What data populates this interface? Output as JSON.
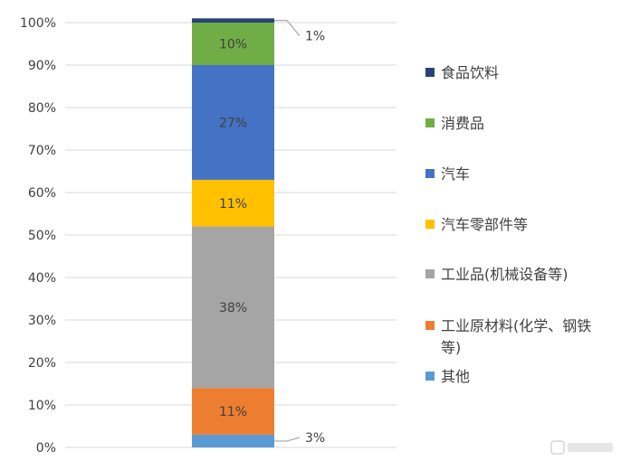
{
  "chart_data": {
    "type": "bar",
    "stacked": true,
    "categories": [
      ""
    ],
    "ylim": [
      0,
      100
    ],
    "y_ticks": [
      "0%",
      "10%",
      "20%",
      "30%",
      "40%",
      "50%",
      "60%",
      "70%",
      "80%",
      "90%",
      "100%"
    ],
    "grid": true,
    "legend_position": "right",
    "series": [
      {
        "name": "其他",
        "values": [
          3
        ],
        "label": "3%",
        "color": "#5B9BD5"
      },
      {
        "name": "工业原材料(化学、钢铁等)",
        "values": [
          11
        ],
        "label": "11%",
        "color": "#ED7D31"
      },
      {
        "name": "工业品(机械设备等)",
        "values": [
          38
        ],
        "label": "38%",
        "color": "#A5A5A5"
      },
      {
        "name": "汽车零部件等",
        "values": [
          11
        ],
        "label": "11%",
        "color": "#FFC000"
      },
      {
        "name": "汽车",
        "values": [
          27
        ],
        "label": "27%",
        "color": "#4472C4"
      },
      {
        "name": "消费品",
        "values": [
          10
        ],
        "label": "10%",
        "color": "#70AD47"
      },
      {
        "name": "食品饮料",
        "values": [
          1
        ],
        "label": "1%",
        "color": "#264478"
      }
    ],
    "legend": [
      {
        "text": "食品饮料",
        "color": "#264478"
      },
      {
        "text": "消费品",
        "color": "#70AD47"
      },
      {
        "text": "汽车",
        "color": "#4472C4"
      },
      {
        "text": "汽车零部件等",
        "color": "#FFC000"
      },
      {
        "text": "工业品(机械设备等)",
        "color": "#A5A5A5"
      },
      {
        "text": "工业原材料(化学、钢铁",
        "text2": "等)",
        "color": "#ED7D31"
      },
      {
        "text": "其他",
        "color": "#5B9BD5"
      }
    ]
  }
}
